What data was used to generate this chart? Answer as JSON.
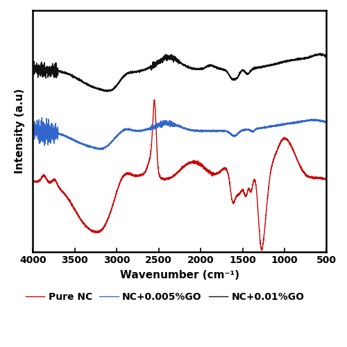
{
  "title": "",
  "xlabel": "Wavenumber (cm⁻¹)",
  "ylabel": "Intensity (a.u)",
  "xlim": [
    4000,
    500
  ],
  "xticks": [
    4000,
    3500,
    3000,
    2500,
    2000,
    1500,
    1000,
    500
  ],
  "colors": {
    "red": "#cc0000",
    "blue": "#3366cc",
    "black": "#111111"
  },
  "legend": [
    "Pure NC",
    "NC+0.005%GO",
    "NC+0.01%GO"
  ],
  "offsets": [
    0.0,
    1.0,
    2.0
  ]
}
